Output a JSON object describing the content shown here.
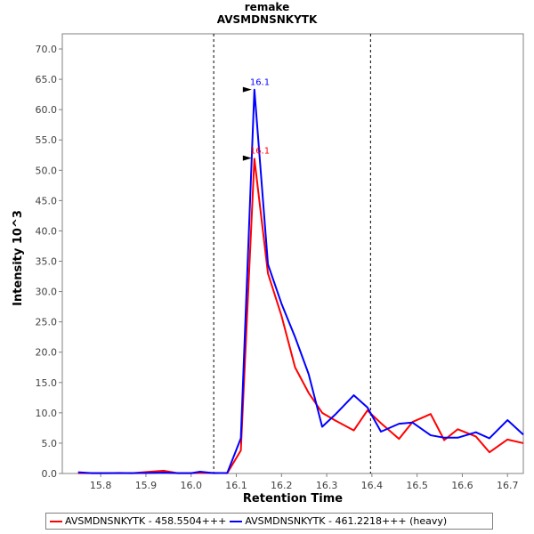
{
  "chart_data": {
    "type": "line",
    "title": "remake",
    "subtitle": "AVSMDNSNKYTK",
    "xlabel": "Retention Time",
    "ylabel": "Intensity 10^3",
    "xlim": [
      15.715,
      16.735
    ],
    "ylim": [
      0,
      72.5
    ],
    "x_ticks": [
      "15.8",
      "15.9",
      "16.0",
      "16.1",
      "16.2",
      "16.3",
      "16.4",
      "16.5",
      "16.6",
      "16.7"
    ],
    "y_ticks": [
      "0.0",
      "5.0",
      "10.0",
      "15.0",
      "20.0",
      "25.0",
      "30.0",
      "35.0",
      "40.0",
      "45.0",
      "50.0",
      "55.0",
      "60.0",
      "65.0",
      "70.0"
    ],
    "vlines": [
      16.05,
      16.397
    ],
    "grid": false,
    "legend_position": "bottom",
    "series": [
      {
        "name": "AVSMDNSNKYTK - 458.5504+++",
        "color": "#ff0000",
        "peak_label": "16.1",
        "peak_x": 16.14,
        "peak_y": 52,
        "points": [
          [
            15.75,
            0.05
          ],
          [
            15.78,
            0.05
          ],
          [
            15.81,
            0.05
          ],
          [
            15.84,
            0.1
          ],
          [
            15.87,
            0.05
          ],
          [
            15.91,
            0.3
          ],
          [
            15.94,
            0.45
          ],
          [
            15.97,
            0.05
          ],
          [
            16.0,
            0.05
          ],
          [
            16.02,
            0.1
          ],
          [
            16.05,
            0.1
          ],
          [
            16.08,
            0.05
          ],
          [
            16.11,
            3.8
          ],
          [
            16.14,
            51.9
          ],
          [
            16.17,
            33
          ],
          [
            16.2,
            26
          ],
          [
            16.23,
            17.5
          ],
          [
            16.26,
            13.3
          ],
          [
            16.29,
            10
          ],
          [
            16.32,
            8.7
          ],
          [
            16.36,
            7.1
          ],
          [
            16.39,
            10.4
          ],
          [
            16.42,
            8.3
          ],
          [
            16.46,
            5.7
          ],
          [
            16.49,
            8.5
          ],
          [
            16.53,
            9.8
          ],
          [
            16.56,
            5.5
          ],
          [
            16.59,
            7.3
          ],
          [
            16.63,
            6.1
          ],
          [
            16.66,
            3.5
          ],
          [
            16.7,
            5.6
          ],
          [
            16.735,
            5
          ]
        ]
      },
      {
        "name": "AVSMDNSNKYTK - 461.2218+++ (heavy)",
        "color": "#0000ff",
        "peak_label": "16.1",
        "peak_x": 16.14,
        "peak_y": 63.3,
        "points": [
          [
            15.75,
            0.2
          ],
          [
            15.78,
            0.05
          ],
          [
            15.81,
            0.05
          ],
          [
            15.84,
            0.05
          ],
          [
            15.87,
            0.05
          ],
          [
            15.91,
            0.1
          ],
          [
            15.94,
            0.15
          ],
          [
            15.97,
            0.05
          ],
          [
            16.0,
            0.05
          ],
          [
            16.02,
            0.3
          ],
          [
            16.05,
            0.05
          ],
          [
            16.08,
            0.1
          ],
          [
            16.11,
            5.8
          ],
          [
            16.14,
            63.3
          ],
          [
            16.17,
            34.5
          ],
          [
            16.2,
            28
          ],
          [
            16.23,
            22.5
          ],
          [
            16.26,
            16.4
          ],
          [
            16.29,
            7.7
          ],
          [
            16.32,
            9.8
          ],
          [
            16.36,
            12.9
          ],
          [
            16.39,
            10.9
          ],
          [
            16.42,
            6.9
          ],
          [
            16.46,
            8.2
          ],
          [
            16.49,
            8.4
          ],
          [
            16.53,
            6.3
          ],
          [
            16.56,
            5.9
          ],
          [
            16.59,
            5.9
          ],
          [
            16.63,
            6.8
          ],
          [
            16.66,
            5.8
          ],
          [
            16.7,
            8.8
          ],
          [
            16.735,
            6.4
          ]
        ]
      }
    ]
  }
}
